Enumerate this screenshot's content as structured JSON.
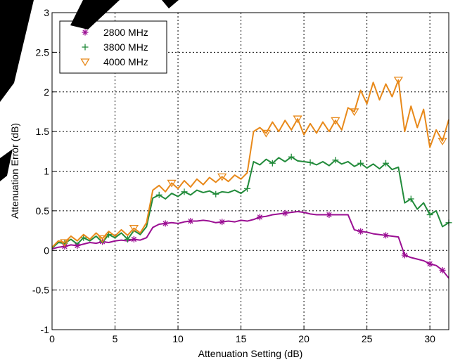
{
  "chart_data": {
    "type": "line",
    "title": "",
    "xlabel": "Attenuation Setting (dB)",
    "ylabel": "Attenuation Error (dB)",
    "xlim": [
      0,
      31.5
    ],
    "ylim": [
      -1,
      3
    ],
    "xticks": [
      0,
      5,
      10,
      15,
      20,
      25,
      30
    ],
    "yticks": [
      -1,
      -0.5,
      0,
      0.5,
      1,
      1.5,
      2,
      2.5,
      3
    ],
    "grid": true,
    "legend": "top-left",
    "x": [
      0,
      0.5,
      1,
      1.5,
      2,
      2.5,
      3,
      3.5,
      4,
      4.5,
      5,
      5.5,
      6,
      6.5,
      7,
      7.5,
      8,
      8.5,
      9,
      9.5,
      10,
      10.5,
      11,
      11.5,
      12,
      12.5,
      13,
      13.5,
      14,
      14.5,
      15,
      15.5,
      16,
      16.5,
      17,
      17.5,
      18,
      18.5,
      19,
      19.5,
      20,
      20.5,
      21,
      21.5,
      22,
      22.5,
      23,
      23.5,
      24,
      24.5,
      25,
      25.5,
      26,
      26.5,
      27,
      27.5,
      28,
      28.5,
      29,
      29.5,
      30,
      30.5,
      31,
      31.5
    ],
    "series": [
      {
        "name": "2800 MHz",
        "color": "#9b0f93",
        "marker": "asterisk",
        "values": [
          0.02,
          0.04,
          0.05,
          0.07,
          0.06,
          0.08,
          0.1,
          0.09,
          0.11,
          0.1,
          0.12,
          0.13,
          0.12,
          0.14,
          0.13,
          0.16,
          0.29,
          0.33,
          0.34,
          0.35,
          0.34,
          0.36,
          0.37,
          0.37,
          0.38,
          0.37,
          0.35,
          0.36,
          0.37,
          0.36,
          0.38,
          0.37,
          0.39,
          0.42,
          0.43,
          0.45,
          0.46,
          0.47,
          0.48,
          0.49,
          0.48,
          0.46,
          0.45,
          0.45,
          0.45,
          0.45,
          0.45,
          0.45,
          0.26,
          0.24,
          0.23,
          0.21,
          0.2,
          0.19,
          0.18,
          0.17,
          -0.06,
          -0.09,
          -0.11,
          -0.13,
          -0.17,
          -0.19,
          -0.25,
          -0.35
        ],
        "markers_at": [
          0,
          1,
          2,
          3,
          4,
          5,
          6,
          7,
          8,
          9,
          10,
          11,
          12,
          13,
          14,
          15,
          16,
          17,
          18,
          19,
          20,
          21,
          22,
          23,
          24,
          25,
          26,
          27,
          28,
          29,
          30,
          31,
          32,
          33,
          34,
          35,
          36,
          37,
          38,
          39,
          40,
          41,
          42,
          43,
          44,
          45,
          46,
          47,
          48,
          49,
          50,
          51,
          52,
          53,
          54,
          55,
          56,
          57,
          58,
          59,
          60,
          61,
          62,
          63
        ]
      },
      {
        "name": "3800 MHz",
        "color": "#228b3b",
        "marker": "plus",
        "values": [
          0.03,
          0.1,
          0.09,
          0.14,
          0.08,
          0.16,
          0.12,
          0.18,
          0.1,
          0.2,
          0.16,
          0.22,
          0.14,
          0.25,
          0.2,
          0.3,
          0.66,
          0.7,
          0.65,
          0.72,
          0.68,
          0.74,
          0.7,
          0.76,
          0.73,
          0.75,
          0.71,
          0.74,
          0.73,
          0.76,
          0.72,
          0.78,
          1.12,
          1.08,
          1.15,
          1.1,
          1.17,
          1.12,
          1.18,
          1.13,
          1.12,
          1.11,
          1.08,
          1.12,
          1.07,
          1.14,
          1.09,
          1.12,
          1.06,
          1.1,
          1.04,
          1.09,
          1.03,
          1.1,
          1.02,
          1.05,
          0.6,
          0.65,
          0.52,
          0.6,
          0.45,
          0.5,
          0.3,
          0.35
        ],
        "markers_at": [
          0,
          1,
          2,
          3,
          4,
          5,
          6,
          7,
          8,
          9,
          10,
          11,
          12,
          13,
          14,
          15,
          16,
          17,
          18,
          19,
          20,
          21,
          22,
          23,
          24,
          25,
          26,
          27,
          28,
          29,
          30,
          31,
          32,
          33,
          34,
          35,
          36,
          37,
          38,
          39,
          40,
          41,
          42,
          43,
          44,
          45,
          46,
          47,
          48,
          49,
          50,
          51,
          52,
          53,
          54,
          55,
          56,
          57,
          58,
          59,
          60,
          61,
          62,
          63
        ]
      },
      {
        "name": "4000 MHz",
        "color": "#e8891a",
        "marker": "triangle-down",
        "values": [
          0.04,
          0.12,
          0.1,
          0.18,
          0.12,
          0.2,
          0.14,
          0.22,
          0.15,
          0.24,
          0.18,
          0.26,
          0.19,
          0.28,
          0.22,
          0.35,
          0.76,
          0.82,
          0.74,
          0.85,
          0.78,
          0.88,
          0.8,
          0.9,
          0.83,
          0.92,
          0.86,
          0.93,
          0.87,
          0.95,
          0.9,
          0.98,
          1.5,
          1.55,
          1.48,
          1.62,
          1.5,
          1.64,
          1.52,
          1.66,
          1.46,
          1.6,
          1.48,
          1.62,
          1.5,
          1.64,
          1.52,
          1.8,
          1.75,
          2.02,
          1.85,
          2.12,
          1.9,
          2.1,
          1.94,
          2.15,
          1.5,
          1.82,
          1.55,
          1.78,
          1.3,
          1.52,
          1.38,
          1.65
        ],
        "markers_at": [
          0,
          1,
          2,
          3,
          4,
          5,
          6,
          7,
          8,
          9,
          10,
          11,
          12,
          13,
          14,
          15,
          16,
          17,
          18,
          19,
          20,
          21,
          22,
          23,
          24,
          25,
          26,
          27,
          28,
          29,
          30,
          31,
          32,
          33,
          34,
          35,
          36,
          37,
          38,
          39,
          40,
          41,
          42,
          43,
          44,
          45,
          46,
          47,
          48,
          49,
          50,
          51,
          52,
          53,
          54,
          55,
          56,
          57,
          58,
          59,
          60,
          61,
          62,
          63
        ]
      }
    ]
  }
}
